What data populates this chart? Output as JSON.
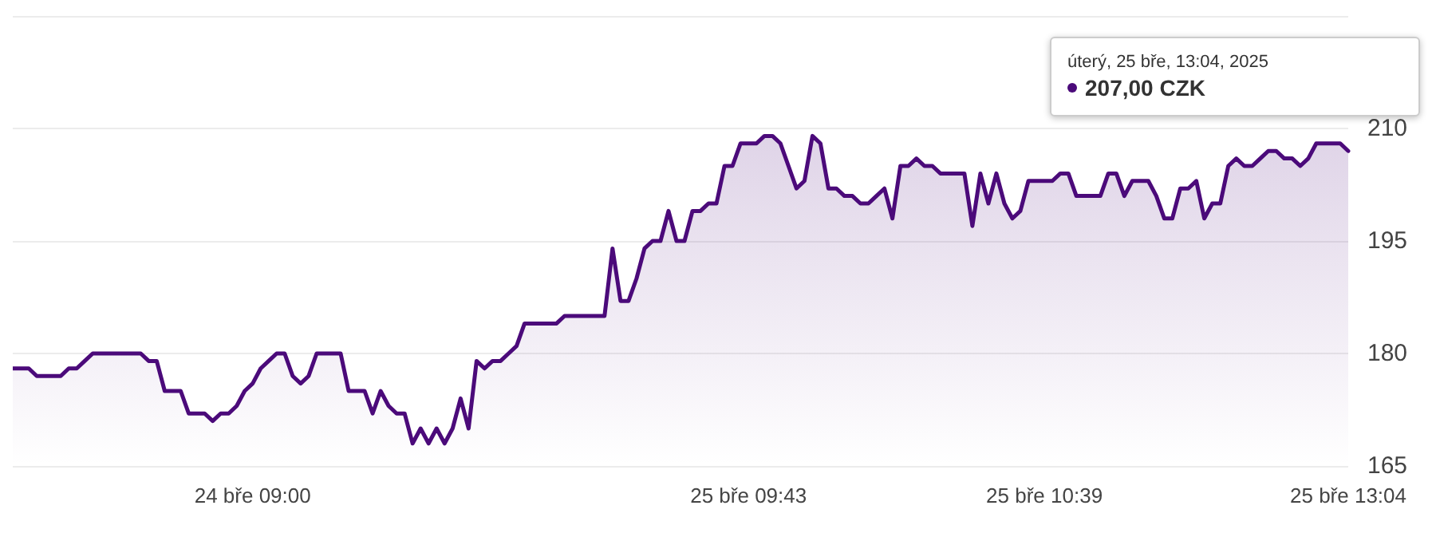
{
  "chart_data": {
    "type": "area",
    "categories": [
      null,
      null,
      null,
      null,
      null,
      null,
      null,
      null,
      null,
      null,
      null,
      null,
      null,
      null,
      null,
      null,
      null,
      null,
      null,
      null,
      null,
      null,
      null,
      null,
      null,
      null,
      null,
      null,
      null,
      null,
      "24 bře 09:00",
      null,
      null,
      null,
      null,
      null,
      null,
      null,
      null,
      null,
      null,
      null,
      null,
      null,
      null,
      null,
      null,
      null,
      null,
      null,
      null,
      null,
      null,
      null,
      null,
      null,
      null,
      null,
      null,
      null,
      null,
      null,
      null,
      null,
      null,
      null,
      null,
      null,
      null,
      null,
      null,
      null,
      null,
      null,
      null,
      null,
      null,
      null,
      null,
      null,
      null,
      null,
      null,
      null,
      null,
      null,
      null,
      null,
      null,
      null,
      null,
      null,
      "25 bře 09:43",
      null,
      null,
      null,
      null,
      null,
      null,
      null,
      null,
      null,
      null,
      null,
      null,
      null,
      null,
      null,
      null,
      null,
      null,
      null,
      null,
      null,
      null,
      null,
      null,
      null,
      null,
      null,
      null,
      null,
      null,
      null,
      null,
      null,
      null,
      null,
      null,
      "25 bře 10:39",
      null,
      null,
      null,
      null,
      null,
      null,
      null,
      null,
      null,
      null,
      null,
      null,
      null,
      null,
      null,
      null,
      null,
      null,
      null,
      null,
      null,
      null,
      null,
      null,
      null,
      null,
      null,
      null,
      null,
      null,
      null,
      null,
      null,
      null,
      null,
      null,
      null,
      "25 bře 13:04"
    ],
    "series": [
      {
        "color": "#4b0a7a",
        "values": [
          178,
          178,
          178,
          177,
          177,
          177,
          177,
          178,
          178,
          179,
          180,
          180,
          180,
          180,
          180,
          180,
          180,
          179,
          179,
          175,
          175,
          175,
          172,
          172,
          172,
          171,
          172,
          172,
          173,
          175,
          176,
          178,
          179,
          180,
          180,
          177,
          176,
          177,
          180,
          180,
          180,
          180,
          175,
          175,
          175,
          172,
          175,
          173,
          172,
          172,
          168,
          170,
          168,
          170,
          168,
          170,
          174,
          170,
          179,
          178,
          179,
          179,
          180,
          181,
          184,
          184,
          184,
          184,
          184,
          185,
          185,
          185,
          185,
          185,
          185,
          194,
          187,
          187,
          190,
          194,
          195,
          195,
          199,
          195,
          195,
          199,
          199,
          200,
          200,
          205,
          205,
          208,
          208,
          208,
          209,
          209,
          208,
          205,
          202,
          203,
          209,
          208,
          202,
          202,
          201,
          201,
          200,
          200,
          201,
          202,
          198,
          205,
          205,
          206,
          205,
          205,
          204,
          204,
          204,
          204,
          197,
          204,
          200,
          204,
          200,
          198,
          199,
          203,
          203,
          203,
          203,
          204,
          204,
          201,
          201,
          201,
          201,
          204,
          204,
          201,
          203,
          203,
          203,
          201,
          198,
          198,
          202,
          202,
          203,
          198,
          200,
          200,
          205,
          206,
          205,
          205,
          206,
          207,
          207,
          206,
          206,
          205,
          206,
          208,
          208,
          208,
          208,
          207
        ]
      }
    ],
    "ylim": [
      165,
      225
    ],
    "yticks": [
      165,
      180,
      195,
      210,
      {
        "value": 225,
        "label": null
      }
    ],
    "grid": "y",
    "marker": "none",
    "line_style": "solid",
    "annotations": [
      "úterý, 25 bře, 13:04, 2025",
      "207,00 CZK"
    ]
  }
}
